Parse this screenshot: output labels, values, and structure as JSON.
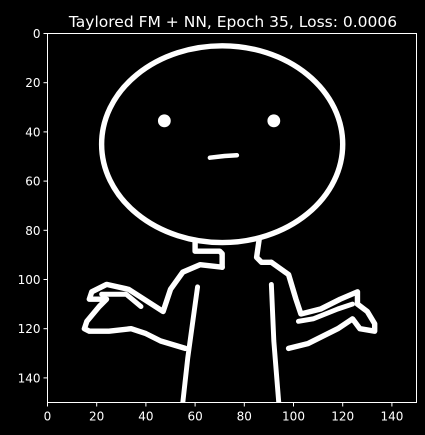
{
  "chart_data": {
    "type": "heatmap",
    "title": "Taylored FM + NN, Epoch 35, Loss: 0.0006",
    "xlabel": "",
    "ylabel": "",
    "xlim": [
      0,
      150
    ],
    "ylim": [
      150,
      0
    ],
    "x_ticks": [
      0,
      20,
      40,
      60,
      80,
      100,
      120,
      140
    ],
    "y_ticks": [
      0,
      20,
      40,
      60,
      80,
      100,
      120,
      140
    ],
    "grid": false,
    "colormap": "gray",
    "colors": {
      "background": "#000000",
      "foreground": "#ffffff",
      "axes": "#ffffff"
    },
    "image_description_strokes": [
      {
        "name": "head",
        "kind": "ellipse",
        "cx": 71,
        "cy": 45,
        "rx": 49,
        "ry": 40,
        "width": 2.2
      },
      {
        "name": "left-eye",
        "kind": "dot",
        "cx": 47.5,
        "cy": 35.5,
        "r": 2.6
      },
      {
        "name": "right-eye",
        "kind": "dot",
        "cx": 92,
        "cy": 35.5,
        "r": 2.6
      },
      {
        "name": "mouth",
        "kind": "polyline",
        "points": [
          [
            66,
            50.5
          ],
          [
            72,
            49.8
          ],
          [
            77,
            49.5
          ]
        ],
        "width": 1.8
      },
      {
        "name": "left-neck",
        "kind": "polyline",
        "points": [
          [
            60,
            84
          ],
          [
            60,
            88.5
          ],
          [
            70,
            88.5
          ],
          [
            71,
            89.5
          ],
          [
            71,
            95
          ]
        ],
        "width": 2.2
      },
      {
        "name": "right-neck",
        "kind": "polyline",
        "points": [
          [
            86,
            84
          ],
          [
            85,
            91
          ],
          [
            87,
            93
          ],
          [
            91,
            93
          ]
        ],
        "width": 2.2
      },
      {
        "name": "left-shoulder-arm-top",
        "kind": "polyline",
        "points": [
          [
            71,
            95
          ],
          [
            62,
            94
          ],
          [
            55,
            97
          ],
          [
            50,
            104
          ],
          [
            47,
            113
          ],
          [
            33,
            104
          ],
          [
            24,
            102
          ],
          [
            18,
            105
          ],
          [
            17,
            108
          ],
          [
            24,
            108
          ],
          [
            21,
            111
          ],
          [
            16,
            117
          ],
          [
            15,
            120
          ],
          [
            17,
            121
          ],
          [
            25,
            121
          ],
          [
            34,
            120
          ],
          [
            40,
            122
          ],
          [
            46,
            125
          ],
          [
            56,
            128
          ]
        ],
        "width": 2.2
      },
      {
        "name": "left-arm-inner",
        "kind": "polyline",
        "points": [
          [
            22,
            106
          ],
          [
            32,
            106
          ],
          [
            38,
            111
          ]
        ],
        "width": 2.0
      },
      {
        "name": "right-shoulder-arm",
        "kind": "polyline",
        "points": [
          [
            91,
            93
          ],
          [
            98,
            98
          ],
          [
            101,
            108
          ],
          [
            103,
            114
          ],
          [
            111,
            112
          ],
          [
            119,
            108
          ],
          [
            126,
            105
          ],
          [
            126,
            110
          ],
          [
            130,
            113
          ],
          [
            133,
            118
          ],
          [
            133,
            121
          ],
          [
            127,
            120
          ],
          [
            124,
            116
          ],
          [
            118,
            120
          ],
          [
            106,
            126
          ],
          [
            98,
            128
          ]
        ],
        "width": 2.2
      },
      {
        "name": "right-arm-inner",
        "kind": "polyline",
        "points": [
          [
            102,
            117
          ],
          [
            108,
            116
          ],
          [
            118,
            112
          ],
          [
            124,
            110
          ]
        ],
        "width": 2.0
      },
      {
        "name": "left-leg",
        "kind": "polyline",
        "points": [
          [
            61,
            103
          ],
          [
            57,
            132
          ],
          [
            55,
            150
          ]
        ],
        "width": 2.0
      },
      {
        "name": "right-leg",
        "kind": "polyline",
        "points": [
          [
            91,
            102
          ],
          [
            92,
            125
          ],
          [
            94,
            150
          ]
        ],
        "width": 2.0
      }
    ]
  }
}
